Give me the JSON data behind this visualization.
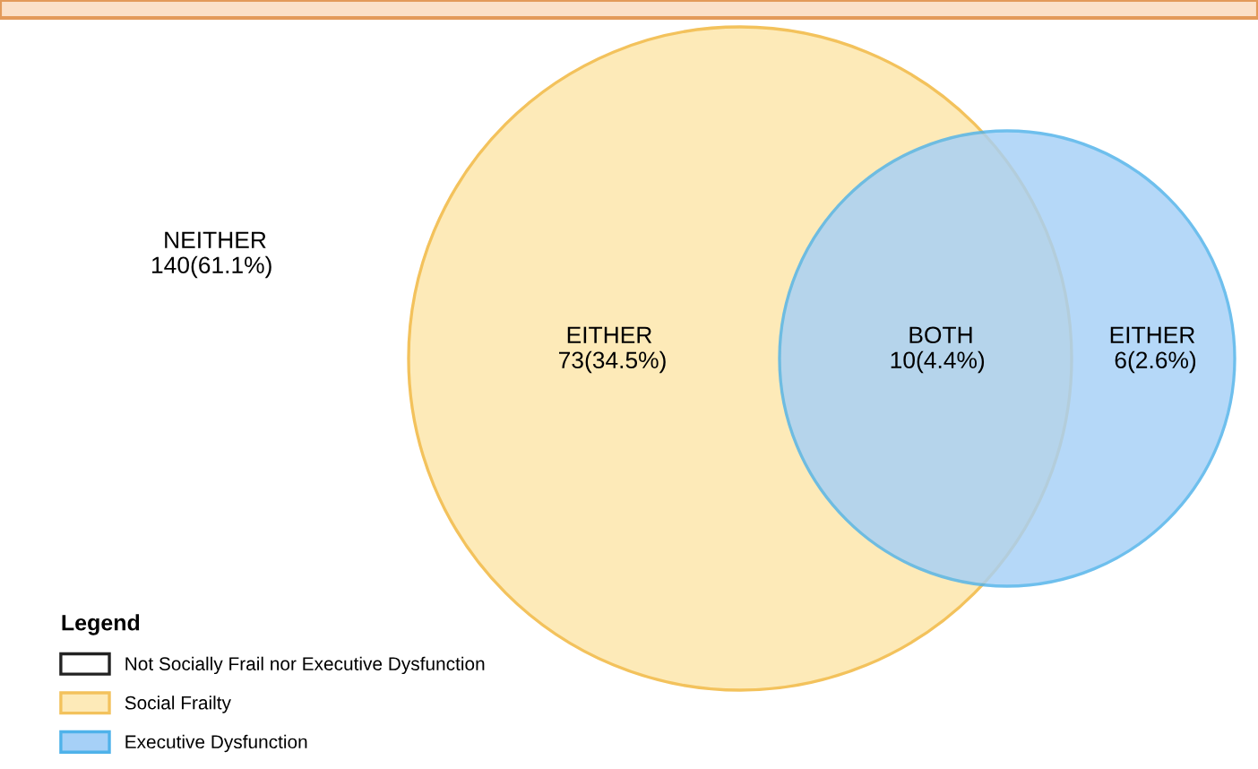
{
  "chart_data": {
    "type": "other",
    "categories": [
      "NEITHER",
      "EITHER",
      "BOTH",
      "EITHER"
    ],
    "data_labels": true,
    "annotations": [
      "(61.1%)",
      "(34.5%)",
      "(4.4%)",
      "(2.6%)"
    ],
    "series": [
      {
        "name": "Not Socially Frail nor Executive Dysfunction",
        "color": "#ffffff",
        "values": [
          140,
          null,
          null,
          null
        ]
      },
      {
        "name": "Social Frailty",
        "color": "#fdeab8",
        "values": [
          null,
          73,
          null,
          null
        ]
      },
      {
        "name": "Executive Dysfunction",
        "color": "#a6d0f7",
        "values": [
          null,
          null,
          10,
          6
        ]
      }
    ],
    "legend": "bottom left",
    "legend_title": "Legend"
  }
}
